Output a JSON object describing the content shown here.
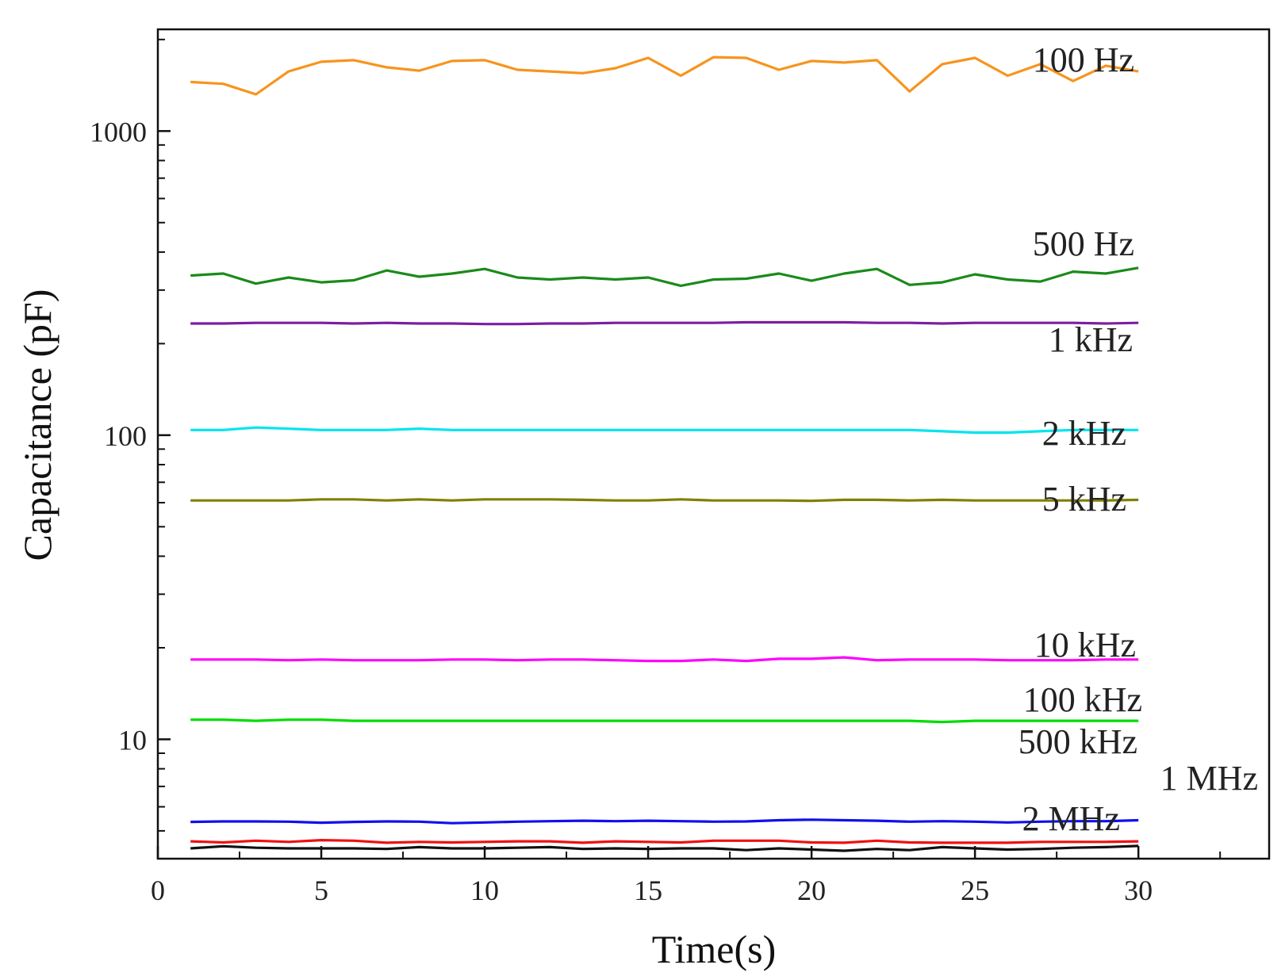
{
  "chart_data": {
    "type": "line",
    "title": "",
    "xlabel": "Time(s)",
    "ylabel": "Capacitance (pF)",
    "xlim": [
      0,
      34
    ],
    "ylim": [
      4.05,
      2160
    ],
    "yscale": "log",
    "grid": false,
    "x_ticks": [
      0,
      5,
      10,
      15,
      20,
      25,
      30
    ],
    "x_tick_labels": [
      "0",
      "5",
      "10",
      "15",
      "20",
      "25",
      "30"
    ],
    "y_ticks": [
      10,
      100,
      1000
    ],
    "y_tick_labels": [
      "10",
      "100",
      "1000"
    ],
    "x": [
      1,
      2,
      3,
      4,
      5,
      6,
      7,
      8,
      9,
      10,
      11,
      12,
      13,
      14,
      15,
      16,
      17,
      18,
      19,
      20,
      21,
      22,
      23,
      24,
      25,
      26,
      27,
      28,
      29,
      30
    ],
    "series": [
      {
        "name": "100 Hz",
        "label": "100 Hz",
        "color": "#F7941D",
        "values": [
          1450,
          1430,
          1320,
          1570,
          1690,
          1710,
          1620,
          1580,
          1700,
          1710,
          1590,
          1570,
          1550,
          1610,
          1740,
          1520,
          1750,
          1740,
          1590,
          1700,
          1680,
          1710,
          1350,
          1660,
          1740,
          1520,
          1660,
          1460,
          1640,
          1570
        ]
      },
      {
        "name": "500 Hz",
        "label": "500 Hz",
        "color": "#1B8A1B",
        "values": [
          335,
          340,
          315,
          330,
          318,
          323,
          348,
          332,
          340,
          352,
          330,
          325,
          330,
          325,
          330,
          310,
          325,
          327,
          340,
          322,
          340,
          352,
          312,
          318,
          338,
          325,
          320,
          345,
          340,
          355
        ]
      },
      {
        "name": "1 kHz",
        "label": "1 kHz",
        "color": "#7B1FA2",
        "values": [
          233,
          233,
          234,
          234,
          234,
          233,
          234,
          233,
          233,
          232,
          232,
          233,
          233,
          234,
          234,
          234,
          234,
          235,
          235,
          235,
          235,
          234,
          234,
          233,
          234,
          234,
          234,
          234,
          233,
          234
        ]
      },
      {
        "name": "2 kHz",
        "label": "2 kHz",
        "color": "#00E5EE",
        "values": [
          104,
          104,
          106,
          105,
          104,
          104,
          104,
          105,
          104,
          104,
          104,
          104,
          104,
          104,
          104,
          104,
          104,
          104,
          104,
          104,
          104,
          104,
          104,
          103,
          102,
          102,
          103,
          104,
          104,
          104
        ]
      },
      {
        "name": "5 kHz",
        "label": "5 kHz",
        "color": "#808000",
        "values": [
          61,
          61,
          61,
          61,
          61.5,
          61.5,
          61,
          61.5,
          61,
          61.5,
          61.5,
          61.5,
          61.3,
          61,
          61,
          61.5,
          61,
          61,
          61,
          60.8,
          61.3,
          61.3,
          61,
          61.3,
          61,
          61,
          61,
          61,
          61,
          61.3
        ]
      },
      {
        "name": "10 kHz",
        "label": "10 kHz",
        "color": "#FF00FF",
        "values": [
          18.3,
          18.3,
          18.3,
          18.2,
          18.3,
          18.2,
          18.2,
          18.2,
          18.3,
          18.3,
          18.2,
          18.3,
          18.3,
          18.2,
          18.1,
          18.1,
          18.3,
          18.1,
          18.4,
          18.4,
          18.6,
          18.2,
          18.3,
          18.3,
          18.3,
          18.2,
          18.2,
          18.2,
          18.3,
          18.3
        ]
      },
      {
        "name": "100 kHz",
        "label": "100 kHz",
        "color": "#00DD00",
        "values": [
          11.6,
          11.6,
          11.5,
          11.6,
          11.6,
          11.5,
          11.5,
          11.5,
          11.5,
          11.5,
          11.5,
          11.5,
          11.5,
          11.5,
          11.5,
          11.5,
          11.5,
          11.5,
          11.5,
          11.5,
          11.5,
          11.5,
          11.5,
          11.4,
          11.5,
          11.5,
          11.5,
          11.5,
          11.5,
          11.5
        ]
      },
      {
        "name": "500 kHz",
        "label": "500 kHz",
        "color": "#1010EE",
        "values": [
          5.35,
          5.37,
          5.37,
          5.36,
          5.32,
          5.35,
          5.37,
          5.36,
          5.3,
          5.33,
          5.36,
          5.38,
          5.4,
          5.38,
          5.4,
          5.38,
          5.36,
          5.37,
          5.42,
          5.44,
          5.42,
          5.4,
          5.36,
          5.38,
          5.36,
          5.33,
          5.36,
          5.38,
          5.38,
          5.42
        ]
      },
      {
        "name": "1 MHz",
        "label": "1 MHz",
        "color": "#EE1111",
        "values": [
          4.62,
          4.58,
          4.64,
          4.6,
          4.66,
          4.64,
          4.57,
          4.6,
          4.58,
          4.6,
          4.62,
          4.62,
          4.57,
          4.62,
          4.6,
          4.58,
          4.64,
          4.64,
          4.64,
          4.58,
          4.57,
          4.64,
          4.58,
          4.57,
          4.57,
          4.57,
          4.6,
          4.6,
          4.6,
          4.62
        ]
      },
      {
        "name": "2 MHz",
        "label": "2 MHz",
        "color": "#111111",
        "values": [
          4.38,
          4.45,
          4.4,
          4.38,
          4.38,
          4.38,
          4.36,
          4.42,
          4.38,
          4.38,
          4.4,
          4.42,
          4.36,
          4.38,
          4.36,
          4.38,
          4.38,
          4.32,
          4.38,
          4.34,
          4.3,
          4.36,
          4.32,
          4.42,
          4.38,
          4.34,
          4.36,
          4.4,
          4.42,
          4.46
        ]
      }
    ]
  }
}
